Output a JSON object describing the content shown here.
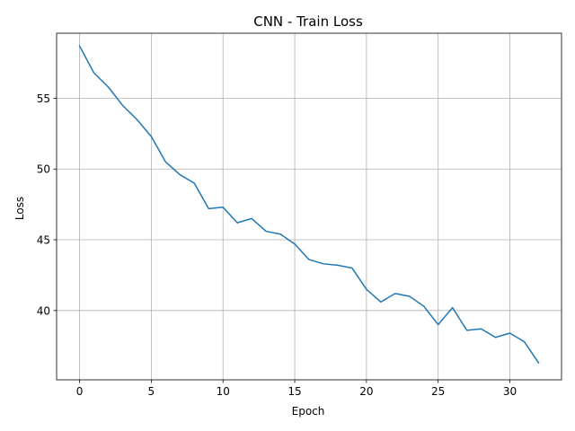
{
  "chart_data": {
    "type": "line",
    "title": "CNN - Train Loss",
    "xlabel": "Epoch",
    "ylabel": "Loss",
    "xlim": [
      -1.6,
      33.6
    ],
    "ylim": [
      35.1,
      59.6
    ],
    "xticks": [
      0,
      5,
      10,
      15,
      20,
      25,
      30
    ],
    "yticks": [
      40,
      45,
      50,
      55
    ],
    "grid": true,
    "legend": "none",
    "colors": {
      "line": "#1f77b4",
      "grid": "#b0b0b0",
      "axes": "#000000"
    },
    "series": [
      {
        "x": [
          0,
          1,
          2,
          3,
          4,
          5,
          6,
          7,
          8,
          9,
          10,
          11,
          12,
          13,
          14,
          15,
          16,
          17,
          18,
          19,
          20,
          21,
          22,
          23,
          24,
          25,
          26,
          27,
          28,
          29,
          30,
          31,
          32
        ],
        "values": [
          58.7,
          56.8,
          55.8,
          54.5,
          53.5,
          52.3,
          50.5,
          49.6,
          49.0,
          47.2,
          47.3,
          46.2,
          46.5,
          45.6,
          45.4,
          44.7,
          43.6,
          43.3,
          43.2,
          43.0,
          41.5,
          40.6,
          41.2,
          41.0,
          40.3,
          39.0,
          40.2,
          38.6,
          38.7,
          38.1,
          38.4,
          37.8,
          36.3
        ]
      }
    ]
  }
}
